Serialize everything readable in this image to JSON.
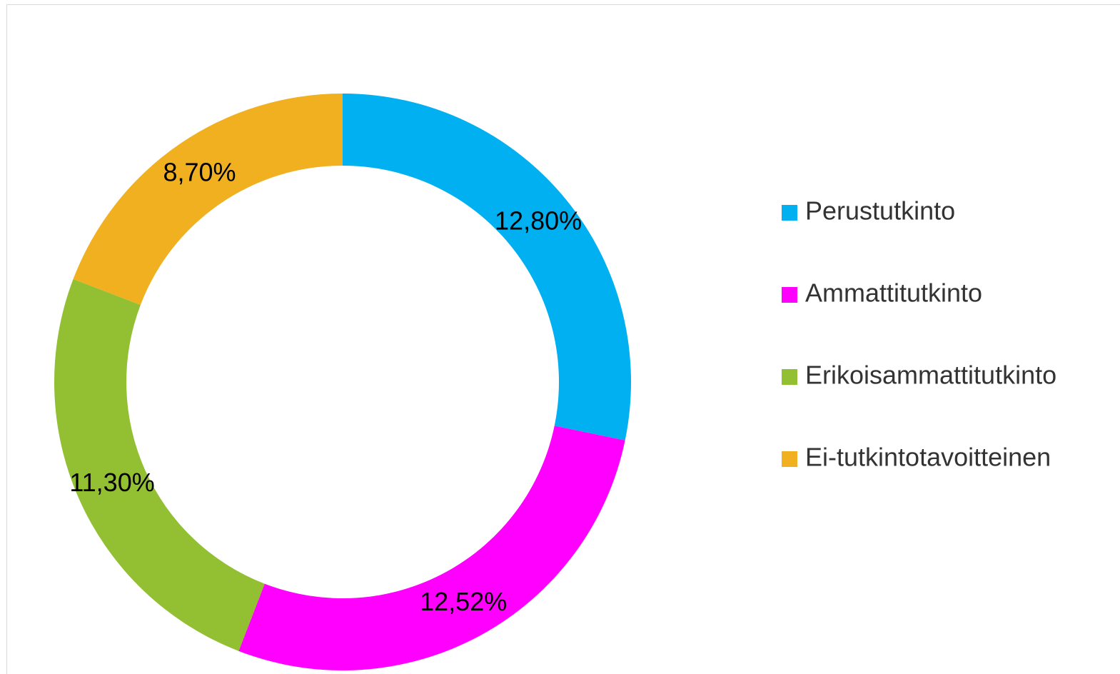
{
  "chart_data": {
    "type": "donut",
    "categories": [
      "Perustutkinto",
      "Ammattitutkinto",
      "Erikoisammattitutkinto",
      "Ei-tutkintotavoitteinen"
    ],
    "values": [
      12.8,
      12.52,
      11.3,
      8.7
    ],
    "value_labels": [
      "12,80%",
      "12,52%",
      "11,30%",
      "8,70%"
    ],
    "colors": [
      "#00b0f0",
      "#ff00ff",
      "#92c032",
      "#f0b020"
    ],
    "legend": "right"
  }
}
